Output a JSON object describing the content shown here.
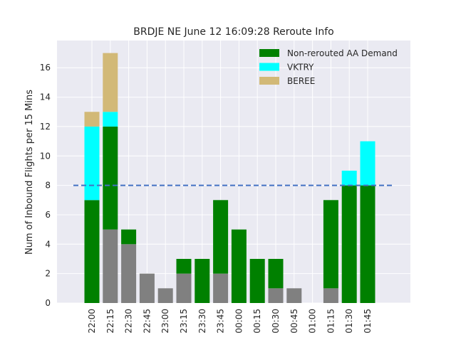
{
  "chart_data": {
    "type": "bar",
    "stacked": true,
    "title": "BRDJE NE June 12 16:09:28 Reroute Info",
    "xlabel": "",
    "ylabel": "Num of Inbound Flights per 15 Mins",
    "categories": [
      "22:00",
      "22:15",
      "22:30",
      "22:45",
      "23:00",
      "23:15",
      "23:30",
      "23:45",
      "00:00",
      "00:15",
      "00:30",
      "00:45",
      "01:00",
      "01:15",
      "01:30",
      "01:45"
    ],
    "series": [
      {
        "name": "",
        "color": "#808080",
        "values": [
          0,
          5,
          4,
          2,
          1,
          2,
          0,
          2,
          0,
          0,
          1,
          1,
          0,
          1,
          0,
          0
        ]
      },
      {
        "name": "Non-rerouted AA Demand",
        "color": "#008000",
        "values": [
          7,
          7,
          1,
          0,
          0,
          1,
          3,
          5,
          5,
          3,
          2,
          0,
          0,
          6,
          8,
          8
        ]
      },
      {
        "name": "VKTRY",
        "color": "#00ffff",
        "values": [
          5,
          1,
          0,
          0,
          0,
          0,
          0,
          0,
          0,
          0,
          0,
          0,
          0,
          0,
          1,
          3
        ]
      },
      {
        "name": "BEREE",
        "color": "#d2b977",
        "values": [
          1,
          4,
          0,
          0,
          0,
          0,
          0,
          0,
          0,
          0,
          0,
          0,
          0,
          0,
          0,
          0
        ]
      }
    ],
    "reference_line": {
      "value": 8,
      "color": "#4472c4",
      "style": "dashed"
    },
    "ylim": [
      0,
      17.85
    ],
    "yticks": [
      0,
      2,
      4,
      6,
      8,
      10,
      12,
      14,
      16
    ],
    "grid": true,
    "legend_position": "top-right",
    "background": "#eaeaf2"
  }
}
